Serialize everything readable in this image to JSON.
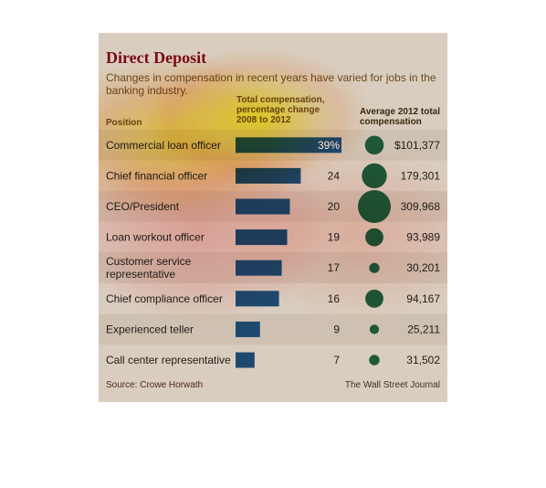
{
  "header": {
    "title": "Direct Deposit",
    "subtitle": "Changes in compensation in recent years have varied for jobs in the banking industry.",
    "column_position": "Position",
    "column_pct": "Total compensation, percentage change 2008 to 2012",
    "column_total": "Average 2012 total compensation"
  },
  "footer": {
    "source": "Source: Crowe Horwath",
    "credit": "The Wall Street Journal"
  },
  "colors": {
    "background": "#d9d4c5",
    "title": "#7b0b12",
    "bar": "#1e4b73",
    "circle": "#1f5a39",
    "label": "#1f1d19",
    "band": "#cbc3b2"
  },
  "chart_data": {
    "type": "table",
    "title": "Direct Deposit",
    "subtitle": "Changes in compensation in recent years have varied for jobs in the banking industry.",
    "columns": [
      "Position",
      "Total compensation, percentage change 2008 to 2012",
      "Average 2012 total compensation"
    ],
    "rows": [
      {
        "position": "Commercial loan officer",
        "pct_change": 39,
        "pct_label": "39%",
        "avg_2012": 101377,
        "avg_label": "$101,377"
      },
      {
        "position": "Chief financial officer",
        "pct_change": 24,
        "pct_label": "24",
        "avg_2012": 179301,
        "avg_label": "179,301"
      },
      {
        "position": "CEO/President",
        "pct_change": 20,
        "pct_label": "20",
        "avg_2012": 309968,
        "avg_label": "309,968"
      },
      {
        "position": "Loan workout officer",
        "pct_change": 19,
        "pct_label": "19",
        "avg_2012": 93989,
        "avg_label": "93,989"
      },
      {
        "position": "Customer service representative",
        "pct_change": 17,
        "pct_label": "17",
        "avg_2012": 30201,
        "avg_label": "30,201"
      },
      {
        "position": "Chief compliance officer",
        "pct_change": 16,
        "pct_label": "16",
        "avg_2012": 94167,
        "avg_label": "94,167"
      },
      {
        "position": "Experienced teller",
        "pct_change": 9,
        "pct_label": "9",
        "avg_2012": 25211,
        "avg_label": "25,211"
      },
      {
        "position": "Call center representative",
        "pct_change": 7,
        "pct_label": "7",
        "avg_2012": 31502,
        "avg_label": "31,502"
      }
    ],
    "source": "Source: Crowe Horwath",
    "credit": "The Wall Street Journal"
  }
}
